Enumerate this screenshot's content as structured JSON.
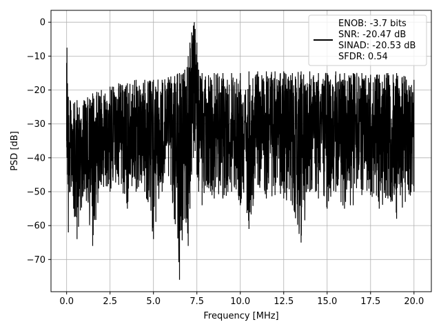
{
  "chart_data": {
    "type": "line",
    "title": "",
    "xlabel": "Frequency [MHz]",
    "ylabel": "PSD [dB]",
    "xlim": [
      -0.9,
      21.0
    ],
    "ylim": [
      -79.5,
      3.5
    ],
    "xticks": [
      0.0,
      2.5,
      5.0,
      7.5,
      10.0,
      12.5,
      15.0,
      17.5,
      20.0
    ],
    "xtick_labels": [
      "0.0",
      "2.5",
      "5.0",
      "7.5",
      "10.0",
      "12.5",
      "15.0",
      "17.5",
      "20.0"
    ],
    "yticks": [
      0,
      -10,
      -20,
      -30,
      -40,
      -50,
      -60,
      -70
    ],
    "ytick_labels": [
      "0",
      "−10",
      "−20",
      "−30",
      "−40",
      "−50",
      "−60",
      "−70"
    ],
    "grid": true,
    "legend_position": "top-right",
    "series": [
      {
        "color": "#000000",
        "legend_lines": [
          "ENOB: -3.7 bits",
          "SNR: -20.47 dB",
          "SINAD: -20.53 dB",
          "SFDR: 0.54"
        ],
        "x": [
          0.0,
          0.02,
          0.05,
          0.1,
          0.2,
          0.4,
          0.6,
          1.0,
          1.5,
          2.0,
          2.5,
          3.0,
          3.5,
          4.0,
          4.5,
          5.0,
          5.5,
          6.0,
          6.5,
          6.8,
          7.0,
          7.1,
          7.2,
          7.3,
          7.35,
          7.4,
          7.5,
          7.6,
          7.8,
          8.0,
          8.5,
          9.0,
          9.5,
          10.0,
          10.5,
          11.0,
          11.5,
          12.0,
          12.5,
          13.0,
          13.5,
          14.0,
          14.5,
          15.0,
          15.5,
          16.0,
          16.5,
          17.0,
          17.5,
          18.0,
          18.5,
          19.0,
          19.5,
          20.0
        ],
        "upper": [
          -12,
          -7.5,
          -18,
          -22,
          -23,
          -24,
          -23,
          -23,
          -21,
          -20,
          -19,
          -18,
          -18,
          -17,
          -17,
          -17,
          -17,
          -16,
          -15,
          -14,
          -10,
          -6,
          -3,
          -1,
          0,
          -2,
          -6,
          -14,
          -15,
          -16,
          -15,
          -15,
          -15,
          -15,
          -14.5,
          -14.5,
          -14.5,
          -14.5,
          -14.5,
          -15,
          -14.5,
          -14.5,
          -15,
          -15,
          -14.5,
          -15,
          -15,
          -15,
          -15.5,
          -15.5,
          -15,
          -15,
          -16,
          -17
        ],
        "lower": [
          -35,
          -40,
          -45,
          -62,
          -50,
          -55,
          -64,
          -50,
          -66,
          -48,
          -50,
          -48,
          -55,
          -50,
          -50,
          -64,
          -50,
          -48,
          -76,
          -58,
          -66,
          -55,
          -45,
          -40,
          -35,
          -38,
          -45,
          -50,
          -54,
          -48,
          -52,
          -52,
          -50,
          -54,
          -61,
          -48,
          -52,
          -51,
          -52,
          -54,
          -65,
          -50,
          -52,
          -55,
          -50,
          -55,
          -54,
          -51,
          -51,
          -55,
          -52,
          -58,
          -53,
          -50
        ]
      }
    ]
  }
}
